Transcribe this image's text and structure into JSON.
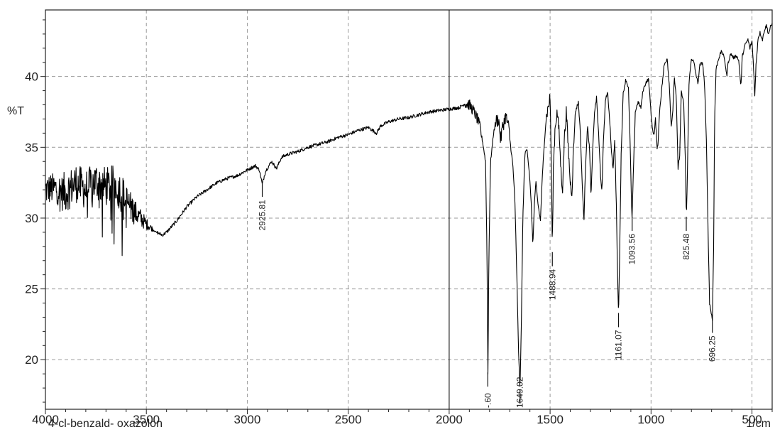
{
  "chart_data": {
    "type": "line",
    "title": "",
    "sample_label": "4-cl-benzald- oxazolon",
    "ylabel": "%T",
    "xunit": "1/cm",
    "xlim": [
      4000,
      400
    ],
    "ylim": [
      16.5,
      44.7
    ],
    "x_reversed": true,
    "grid": true,
    "x_ticks": [
      4000,
      3500,
      3000,
      2500,
      2000,
      1500,
      1000,
      500
    ],
    "x_tick_labels": [
      "4000",
      "3500",
      "3000",
      "2500",
      "2000",
      "1500",
      "1000",
      "500"
    ],
    "y_ticks": [
      20,
      25,
      30,
      35,
      40
    ],
    "y_tick_labels": [
      "20",
      "25",
      "30",
      "35",
      "40"
    ],
    "marker_line_x": 2000,
    "series": [
      {
        "color": "#000000",
        "points": [
          [
            4000,
            32.0
          ],
          [
            3950,
            32.1
          ],
          [
            3900,
            31.8
          ],
          [
            3850,
            32.5
          ],
          [
            3800,
            32.0
          ],
          [
            3750,
            32.6
          ],
          [
            3700,
            32.2
          ],
          [
            3650,
            32.4
          ],
          [
            3600,
            31.2
          ],
          [
            3550,
            30.3
          ],
          [
            3500,
            29.6
          ],
          [
            3450,
            29.0
          ],
          [
            3420,
            28.8
          ],
          [
            3400,
            29.0
          ],
          [
            3350,
            29.8
          ],
          [
            3300,
            30.8
          ],
          [
            3250,
            31.5
          ],
          [
            3200,
            32.0
          ],
          [
            3150,
            32.5
          ],
          [
            3100,
            32.8
          ],
          [
            3050,
            33.0
          ],
          [
            3000,
            33.4
          ],
          [
            2960,
            33.7
          ],
          [
            2940,
            33.4
          ],
          [
            2926,
            32.4
          ],
          [
            2910,
            33.3
          ],
          [
            2880,
            34.0
          ],
          [
            2855,
            33.5
          ],
          [
            2830,
            34.3
          ],
          [
            2800,
            34.5
          ],
          [
            2750,
            34.7
          ],
          [
            2700,
            35.0
          ],
          [
            2650,
            35.2
          ],
          [
            2600,
            35.4
          ],
          [
            2550,
            35.7
          ],
          [
            2500,
            35.9
          ],
          [
            2450,
            36.2
          ],
          [
            2400,
            36.4
          ],
          [
            2360,
            36.0
          ],
          [
            2340,
            36.5
          ],
          [
            2300,
            36.8
          ],
          [
            2250,
            37.0
          ],
          [
            2200,
            37.1
          ],
          [
            2150,
            37.3
          ],
          [
            2100,
            37.5
          ],
          [
            2050,
            37.6
          ],
          [
            2000,
            37.7
          ],
          [
            1950,
            37.8
          ],
          [
            1920,
            38.1
          ],
          [
            1900,
            38.0
          ],
          [
            1880,
            37.6
          ],
          [
            1860,
            37.0
          ],
          [
            1845,
            36.3
          ],
          [
            1830,
            35.0
          ],
          [
            1820,
            34.0
          ],
          [
            1813,
            28.0
          ],
          [
            1808,
            19.0
          ],
          [
            1803,
            27.5
          ],
          [
            1795,
            34.0
          ],
          [
            1780,
            36.0
          ],
          [
            1770,
            36.8
          ],
          [
            1755,
            37.0
          ],
          [
            1745,
            35.5
          ],
          [
            1735,
            36.5
          ],
          [
            1720,
            37.2
          ],
          [
            1705,
            36.4
          ],
          [
            1695,
            35.0
          ],
          [
            1685,
            33.8
          ],
          [
            1675,
            31.5
          ],
          [
            1665,
            26.0
          ],
          [
            1657,
            21.0
          ],
          [
            1649,
            17.8
          ],
          [
            1642,
            23.0
          ],
          [
            1635,
            30.0
          ],
          [
            1625,
            34.5
          ],
          [
            1615,
            35.0
          ],
          [
            1605,
            33.5
          ],
          [
            1595,
            31.5
          ],
          [
            1585,
            28.1
          ],
          [
            1578,
            31.0
          ],
          [
            1570,
            32.5
          ],
          [
            1560,
            31.0
          ],
          [
            1548,
            29.8
          ],
          [
            1540,
            32.5
          ],
          [
            1530,
            35.0
          ],
          [
            1520,
            37.0
          ],
          [
            1510,
            37.8
          ],
          [
            1500,
            38.5
          ],
          [
            1494,
            34.0
          ],
          [
            1489,
            27.5
          ],
          [
            1484,
            33.5
          ],
          [
            1475,
            36.5
          ],
          [
            1465,
            37.5
          ],
          [
            1455,
            36.0
          ],
          [
            1445,
            33.0
          ],
          [
            1438,
            32.1
          ],
          [
            1430,
            35.5
          ],
          [
            1420,
            37.5
          ],
          [
            1410,
            35.0
          ],
          [
            1400,
            32.5
          ],
          [
            1392,
            31.8
          ],
          [
            1385,
            34.5
          ],
          [
            1375,
            37.5
          ],
          [
            1360,
            38.2
          ],
          [
            1350,
            36.0
          ],
          [
            1340,
            32.0
          ],
          [
            1332,
            29.9
          ],
          [
            1325,
            33.5
          ],
          [
            1315,
            36.5
          ],
          [
            1305,
            35.0
          ],
          [
            1297,
            31.5
          ],
          [
            1290,
            34.5
          ],
          [
            1280,
            37.5
          ],
          [
            1270,
            38.5
          ],
          [
            1260,
            36.0
          ],
          [
            1250,
            33.0
          ],
          [
            1243,
            31.8
          ],
          [
            1236,
            35.5
          ],
          [
            1225,
            38.5
          ],
          [
            1215,
            38.8
          ],
          [
            1205,
            37.0
          ],
          [
            1195,
            34.5
          ],
          [
            1188,
            33.5
          ],
          [
            1180,
            35.5
          ],
          [
            1172,
            31.0
          ],
          [
            1165,
            25.5
          ],
          [
            1161,
            23.2
          ],
          [
            1156,
            27.0
          ],
          [
            1148,
            34.5
          ],
          [
            1138,
            38.8
          ],
          [
            1125,
            39.8
          ],
          [
            1112,
            39.2
          ],
          [
            1103,
            35.0
          ],
          [
            1097,
            31.0
          ],
          [
            1094,
            30.0
          ],
          [
            1088,
            33.0
          ],
          [
            1078,
            37.5
          ],
          [
            1065,
            38.2
          ],
          [
            1050,
            37.8
          ],
          [
            1040,
            39.0
          ],
          [
            1025,
            39.6
          ],
          [
            1012,
            39.8
          ],
          [
            1003,
            38.0
          ],
          [
            995,
            36.5
          ],
          [
            985,
            35.8
          ],
          [
            978,
            37.0
          ],
          [
            970,
            35.0
          ],
          [
            965,
            35.3
          ],
          [
            958,
            37.5
          ],
          [
            948,
            39.0
          ],
          [
            935,
            40.8
          ],
          [
            920,
            41.3
          ],
          [
            910,
            39.5
          ],
          [
            900,
            36.5
          ],
          [
            892,
            37.5
          ],
          [
            885,
            40.0
          ],
          [
            875,
            38.5
          ],
          [
            866,
            33.5
          ],
          [
            858,
            34.5
          ],
          [
            850,
            39.0
          ],
          [
            838,
            38.0
          ],
          [
            830,
            34.0
          ],
          [
            825,
            30.0
          ],
          [
            820,
            33.0
          ],
          [
            812,
            39.5
          ],
          [
            800,
            41.3
          ],
          [
            788,
            41.0
          ],
          [
            778,
            40.2
          ],
          [
            768,
            39.5
          ],
          [
            758,
            40.8
          ],
          [
            745,
            41.0
          ],
          [
            735,
            39.5
          ],
          [
            725,
            35.0
          ],
          [
            716,
            28.0
          ],
          [
            710,
            24.0
          ],
          [
            696,
            22.8
          ],
          [
            690,
            28.0
          ],
          [
            685,
            37.0
          ],
          [
            678,
            40.5
          ],
          [
            665,
            41.3
          ],
          [
            650,
            41.8
          ],
          [
            635,
            41.2
          ],
          [
            625,
            40.0
          ],
          [
            618,
            41.0
          ],
          [
            605,
            41.6
          ],
          [
            590,
            41.3
          ],
          [
            578,
            41.5
          ],
          [
            565,
            41.1
          ],
          [
            555,
            39.2
          ],
          [
            548,
            41.4
          ],
          [
            535,
            42.2
          ],
          [
            520,
            42.6
          ],
          [
            510,
            42.0
          ],
          [
            500,
            42.5
          ],
          [
            492,
            40.6
          ],
          [
            486,
            38.6
          ],
          [
            480,
            40.8
          ],
          [
            470,
            42.7
          ],
          [
            460,
            43.1
          ],
          [
            448,
            42.6
          ],
          [
            438,
            43.3
          ],
          [
            428,
            43.6
          ],
          [
            418,
            43.0
          ],
          [
            408,
            43.5
          ],
          [
            400,
            43.7
          ]
        ]
      }
    ],
    "noise_regions": [
      {
        "from": 4000,
        "to": 3450,
        "amplitude": 1.4
      },
      {
        "from": 1920,
        "to": 1840,
        "amplitude": 0.4
      },
      {
        "from": 1770,
        "to": 1700,
        "amplitude": 0.5
      },
      {
        "from": 1520,
        "to": 1380,
        "amplitude": 0.45
      }
    ],
    "peak_labels": [
      {
        "x": 2925.81,
        "label": "2925.81",
        "y_min": 32.4
      },
      {
        "x": 1808.6,
        "label": "-.60",
        "y_min": 19.0
      },
      {
        "x": 1649.02,
        "label": "1649.02",
        "y_min": 17.8
      },
      {
        "x": 1488.94,
        "label": "1488.94",
        "y_min": 27.5
      },
      {
        "x": 1161.07,
        "label": "1161.07",
        "y_min": 23.2
      },
      {
        "x": 1093.56,
        "label": "1093.56",
        "y_min": 30.0
      },
      {
        "x": 825.48,
        "label": "825.48",
        "y_min": 30.0
      },
      {
        "x": 696.25,
        "label": "696.25",
        "y_min": 22.8
      }
    ]
  }
}
